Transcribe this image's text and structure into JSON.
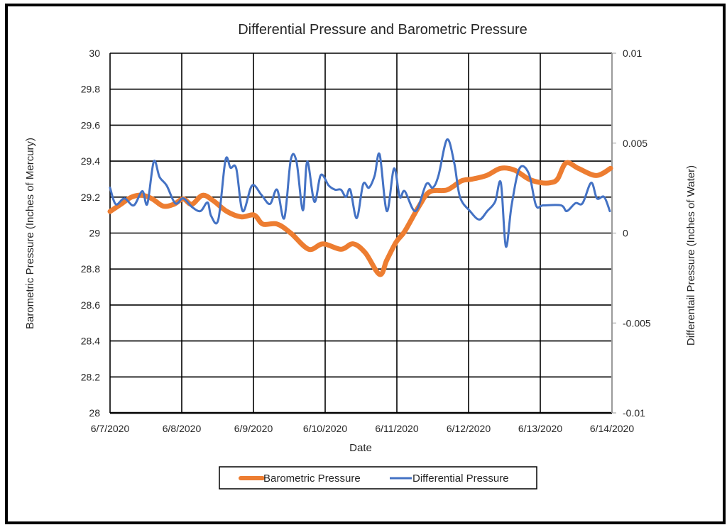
{
  "chart_data": {
    "type": "line",
    "title": "Differential Pressure and Barometric Pressure",
    "xlabel": "Date",
    "ylabel": "Barometric Pressure (Inches of Mercury)",
    "y2label": "Differentail Pressure (Inches of Water)",
    "x_ticks": [
      "6/7/2020",
      "6/8/2020",
      "6/9/2020",
      "6/10/2020",
      "6/11/2020",
      "6/12/2020",
      "6/13/2020",
      "6/14/2020"
    ],
    "xlim_days": [
      0,
      7
    ],
    "ylim": [
      28,
      30
    ],
    "y_ticks": [
      "28",
      "28.2",
      "28.4",
      "28.6",
      "28.8",
      "29",
      "29.2",
      "29.4",
      "29.6",
      "29.8",
      "30"
    ],
    "y2lim": [
      -0.01,
      0.01
    ],
    "y2_ticks": [
      "-0.01",
      "-0.005",
      "0",
      "0.005",
      "0.01"
    ],
    "grid": true,
    "legend_position": "bottom",
    "series": [
      {
        "name": "Barometric Pressure",
        "axis": "left",
        "color": "#ED7D31",
        "x": [
          0,
          0.15,
          0.3,
          0.45,
          0.59,
          0.74,
          0.89,
          1.02,
          1.14,
          1.29,
          1.44,
          1.63,
          1.83,
          2.01,
          2.13,
          2.33,
          2.52,
          2.77,
          2.97,
          3.22,
          3.39,
          3.56,
          3.76,
          3.86,
          3.99,
          4.11,
          4.31,
          4.46,
          4.7,
          4.9,
          5.05,
          5.25,
          5.45,
          5.64,
          5.84,
          6.01,
          6.14,
          6.24,
          6.36,
          6.53,
          6.78,
          6.98
        ],
        "values": [
          29.12,
          29.16,
          29.2,
          29.21,
          29.19,
          29.15,
          29.16,
          29.19,
          29.16,
          29.21,
          29.18,
          29.12,
          29.09,
          29.1,
          29.05,
          29.05,
          29.0,
          28.91,
          28.94,
          28.91,
          28.94,
          28.89,
          28.77,
          28.85,
          28.95,
          29.01,
          29.15,
          29.23,
          29.24,
          29.29,
          29.3,
          29.32,
          29.36,
          29.35,
          29.3,
          29.28,
          29.28,
          29.3,
          29.39,
          29.36,
          29.32,
          29.36
        ]
      },
      {
        "name": "Differential Pressure",
        "axis": "right",
        "color": "#4472C4",
        "x": [
          0,
          0.08,
          0.2,
          0.33,
          0.45,
          0.52,
          0.61,
          0.69,
          0.79,
          0.91,
          1.02,
          1.14,
          1.26,
          1.36,
          1.41,
          1.51,
          1.61,
          1.68,
          1.76,
          1.85,
          1.98,
          2.11,
          2.23,
          2.33,
          2.43,
          2.52,
          2.6,
          2.69,
          2.75,
          2.85,
          2.94,
          3.05,
          3.14,
          3.22,
          3.29,
          3.35,
          3.44,
          3.53,
          3.61,
          3.69,
          3.76,
          3.86,
          3.96,
          4.04,
          4.11,
          4.26,
          4.41,
          4.5,
          4.58,
          4.7,
          4.8,
          4.88,
          5.02,
          5.15,
          5.26,
          5.37,
          5.45,
          5.52,
          5.6,
          5.71,
          5.84,
          5.94,
          6.04,
          6.29,
          6.37,
          6.49,
          6.59,
          6.71,
          6.79,
          6.89,
          6.97
        ],
        "values": [
          0.00252,
          0.0016,
          0.00193,
          0.00154,
          0.00233,
          0.00162,
          0.00398,
          0.00312,
          0.00264,
          0.00165,
          0.00193,
          0.00146,
          0.00122,
          0.0017,
          0.00095,
          0.00075,
          0.00406,
          0.00363,
          0.00359,
          0.00122,
          0.00264,
          0.00213,
          0.00162,
          0.00241,
          0.00083,
          0.00406,
          0.00398,
          0.00126,
          0.00398,
          0.00174,
          0.00323,
          0.00264,
          0.00241,
          0.00241,
          0.00201,
          0.00241,
          0.00083,
          0.00272,
          0.00252,
          0.00319,
          0.00437,
          0.00122,
          0.00359,
          0.00201,
          0.00233,
          0.00122,
          0.00272,
          0.00252,
          0.00319,
          0.0052,
          0.0039,
          0.00201,
          0.00122,
          0.00075,
          0.00122,
          0.00174,
          0.0028,
          -0.00075,
          0.00154,
          0.00359,
          0.00331,
          0.00154,
          0.00154,
          0.00154,
          0.00122,
          0.00166,
          0.00166,
          0.0028,
          0.00193,
          0.00201,
          0.00122
        ]
      }
    ]
  }
}
